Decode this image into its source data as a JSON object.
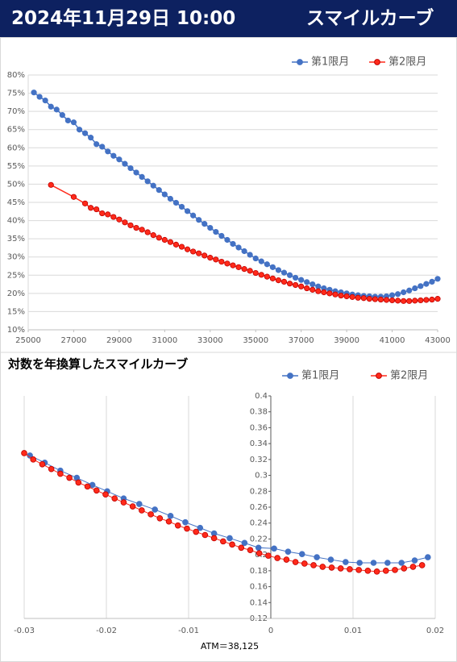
{
  "header": {
    "title": "2024年11月29日 10:00",
    "subtitle": "スマイルカーブ"
  },
  "chart_data": [
    {
      "type": "line",
      "ylim": [
        10,
        80
      ],
      "xlim": [
        25000,
        43000
      ],
      "yticks": [
        {
          "value": 80,
          "label": "80%"
        },
        {
          "value": 75,
          "label": "75%"
        },
        {
          "value": 70,
          "label": "70%"
        },
        {
          "value": 65,
          "label": "65%"
        },
        {
          "value": 60,
          "label": "60%"
        },
        {
          "value": 55,
          "label": "55%"
        },
        {
          "value": 50,
          "label": "50%"
        },
        {
          "value": 45,
          "label": "45%"
        },
        {
          "value": 40,
          "label": "40%"
        },
        {
          "value": 35,
          "label": "35%"
        },
        {
          "value": 30,
          "label": "30%"
        },
        {
          "value": 25,
          "label": "25%"
        },
        {
          "value": 20,
          "label": "20%"
        },
        {
          "value": 15,
          "label": "15%"
        },
        {
          "value": 10,
          "label": "10%"
        }
      ],
      "xticks": [
        25000,
        27000,
        29000,
        31000,
        33000,
        35000,
        37000,
        39000,
        41000,
        43000
      ],
      "grid": "horizontal",
      "legend": "top-right",
      "series": [
        {
          "name": "第1限月",
          "color": "#4472c4",
          "x": [
            25250,
            25500,
            25750,
            26000,
            26250,
            26500,
            26750,
            27000,
            27250,
            27500,
            27750,
            28000,
            28250,
            28500,
            28750,
            29000,
            29250,
            29500,
            29750,
            30000,
            30250,
            30500,
            30750,
            31000,
            31250,
            31500,
            31750,
            32000,
            32250,
            32500,
            32750,
            33000,
            33250,
            33500,
            33750,
            34000,
            34250,
            34500,
            34750,
            35000,
            35250,
            35500,
            35750,
            36000,
            36250,
            36500,
            36750,
            37000,
            37250,
            37500,
            37750,
            38000,
            38250,
            38500,
            38750,
            39000,
            39250,
            39500,
            39750,
            40000,
            40250,
            40500,
            40750,
            41000,
            41250,
            41500,
            41750,
            42000,
            42250,
            42500,
            42750,
            43000
          ],
          "values": [
            75.2,
            74,
            73,
            71.3,
            70.5,
            69,
            67.5,
            67,
            65,
            64,
            62.8,
            61,
            60.3,
            59,
            57.8,
            56.8,
            55.6,
            54.4,
            53.2,
            52,
            50.8,
            49.6,
            48.4,
            47.2,
            46,
            44.9,
            43.8,
            42.6,
            41.4,
            40.2,
            39.1,
            38,
            36.9,
            35.8,
            34.7,
            33.6,
            32.6,
            31.6,
            30.6,
            29.6,
            28.8,
            28,
            27.2,
            26.4,
            25.7,
            25,
            24.3,
            23.7,
            23.1,
            22.5,
            21.9,
            21.4,
            21,
            20.6,
            20.3,
            20,
            19.7,
            19.5,
            19.3,
            19.2,
            19.1,
            19.1,
            19.2,
            19.5,
            19.8,
            20.3,
            20.8,
            21.4,
            22,
            22.6,
            23.2,
            24
          ]
        },
        {
          "name": "第2限月",
          "color": "#ff2a1a",
          "x": [
            26000,
            27000,
            27500,
            27750,
            28000,
            28250,
            28500,
            28750,
            29000,
            29250,
            29500,
            29750,
            30000,
            30250,
            30500,
            30750,
            31000,
            31250,
            31500,
            31750,
            32000,
            32250,
            32500,
            32750,
            33000,
            33250,
            33500,
            33750,
            34000,
            34250,
            34500,
            34750,
            35000,
            35250,
            35500,
            35750,
            36000,
            36250,
            36500,
            36750,
            37000,
            37250,
            37500,
            37750,
            38000,
            38250,
            38500,
            38750,
            39000,
            39250,
            39500,
            39750,
            40000,
            40250,
            40500,
            40750,
            41000,
            41250,
            41500,
            41750,
            42000,
            42250,
            42500,
            42750,
            43000
          ],
          "values": [
            49.8,
            46.5,
            44.7,
            43.5,
            43.1,
            42,
            41.7,
            41,
            40.3,
            39.5,
            38.7,
            38,
            37.5,
            36.8,
            36,
            35.3,
            34.7,
            34.1,
            33.4,
            32.8,
            32.1,
            31.5,
            31,
            30.4,
            29.8,
            29.3,
            28.7,
            28.2,
            27.7,
            27.2,
            26.7,
            26.2,
            25.6,
            25.1,
            24.6,
            24.1,
            23.6,
            23.2,
            22.7,
            22.3,
            21.9,
            21.4,
            21,
            20.6,
            20.3,
            20,
            19.7,
            19.4,
            19.2,
            19,
            18.8,
            18.7,
            18.5,
            18.4,
            18.3,
            18.2,
            18.1,
            18,
            17.9,
            17.9,
            18,
            18.1,
            18.2,
            18.3,
            18.5
          ]
        }
      ]
    },
    {
      "type": "line",
      "title": "対数を年換算したスマイルカーブ",
      "xlabel": "ATM＝38,125",
      "ylim": [
        0.12,
        0.4
      ],
      "xlim": [
        -0.03,
        0.02
      ],
      "yticks": [
        0.4,
        0.38,
        0.36,
        0.34,
        0.32,
        0.3,
        0.28,
        0.26,
        0.24,
        0.22,
        0.2,
        0.18,
        0.16,
        0.14,
        0.12
      ],
      "xticks": [
        -0.03,
        -0.02,
        -0.01,
        0,
        0.01,
        0.02
      ],
      "grid": "vertical",
      "legend": "top-right",
      "series": [
        {
          "name": "第1限月",
          "color": "#4472c4",
          "x": [
            -0.0293,
            -0.0275,
            -0.0256,
            -0.0236,
            -0.0217,
            -0.0199,
            -0.0179,
            -0.016,
            -0.0141,
            -0.0122,
            -0.0104,
            -0.0086,
            -0.0069,
            -0.005,
            -0.0032,
            -0.0015,
            0.0004,
            0.0021,
            0.0038,
            0.0056,
            0.0073,
            0.0091,
            0.0108,
            0.0125,
            0.0142,
            0.0159,
            0.0175,
            0.0191
          ],
          "values": [
            0.325,
            0.316,
            0.306,
            0.297,
            0.288,
            0.28,
            0.271,
            0.264,
            0.257,
            0.249,
            0.241,
            0.234,
            0.227,
            0.221,
            0.215,
            0.209,
            0.208,
            0.204,
            0.201,
            0.197,
            0.194,
            0.191,
            0.19,
            0.19,
            0.19,
            0.19,
            0.193,
            0.197
          ]
        },
        {
          "name": "第2限月",
          "color": "#ff2a1a",
          "x": [
            -0.03,
            -0.0289,
            -0.0278,
            -0.0267,
            -0.0256,
            -0.0245,
            -0.0234,
            -0.0223,
            -0.0212,
            -0.0201,
            -0.019,
            -0.0179,
            -0.0168,
            -0.0157,
            -0.0146,
            -0.0135,
            -0.0124,
            -0.0113,
            -0.0102,
            -0.0091,
            -0.008,
            -0.0069,
            -0.0058,
            -0.0047,
            -0.0036,
            -0.0025,
            -0.0014,
            -0.0003,
            0.0008,
            0.0019,
            0.003,
            0.0041,
            0.0052,
            0.0063,
            0.0074,
            0.0085,
            0.0096,
            0.0107,
            0.0118,
            0.0129,
            0.014,
            0.0151,
            0.0162,
            0.0173,
            0.0184
          ],
          "values": [
            0.328,
            0.32,
            0.314,
            0.308,
            0.302,
            0.297,
            0.291,
            0.286,
            0.281,
            0.276,
            0.271,
            0.266,
            0.261,
            0.256,
            0.251,
            0.246,
            0.242,
            0.237,
            0.233,
            0.229,
            0.225,
            0.221,
            0.217,
            0.213,
            0.209,
            0.206,
            0.202,
            0.199,
            0.196,
            0.194,
            0.191,
            0.189,
            0.187,
            0.185,
            0.184,
            0.183,
            0.182,
            0.181,
            0.18,
            0.179,
            0.18,
            0.181,
            0.183,
            0.185,
            0.187
          ]
        }
      ]
    }
  ]
}
